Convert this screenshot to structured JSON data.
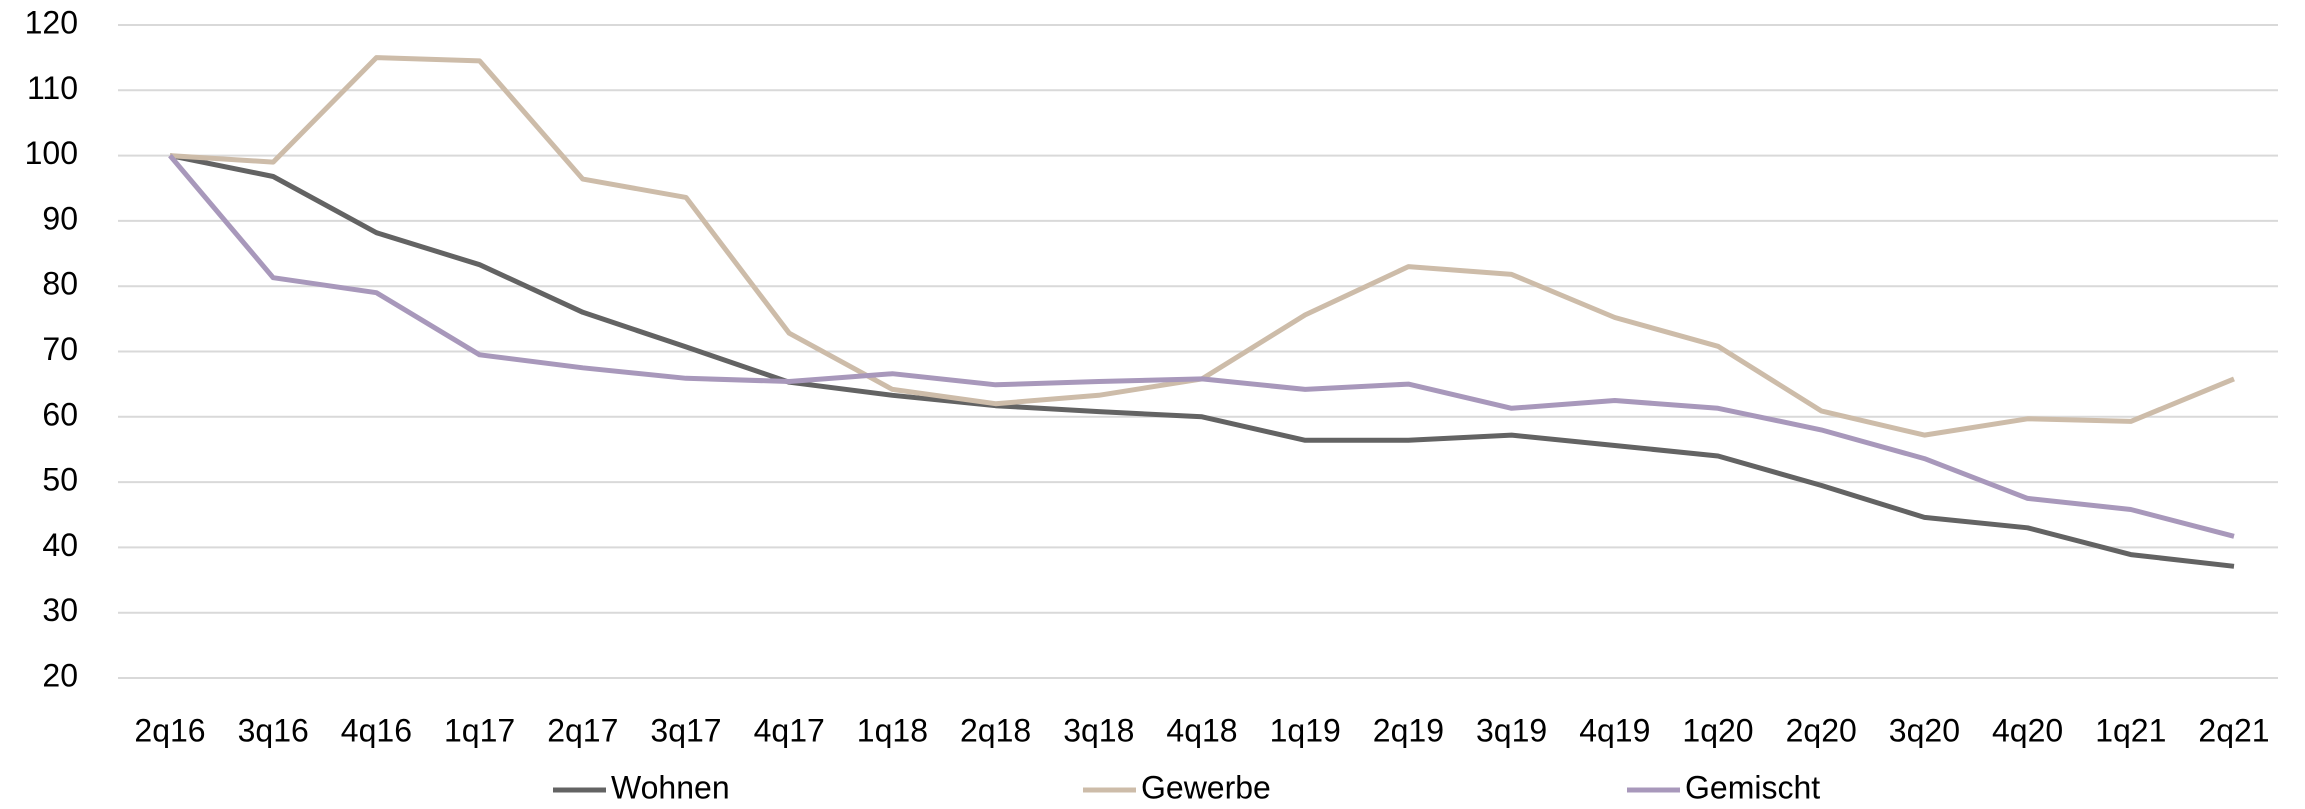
{
  "chart_data": {
    "type": "line",
    "categories": [
      "2q16",
      "3q16",
      "4q16",
      "1q17",
      "2q17",
      "3q17",
      "4q17",
      "1q18",
      "2q18",
      "3q18",
      "4q18",
      "1q19",
      "2q19",
      "3q19",
      "4q19",
      "1q20",
      "2q20",
      "3q20",
      "4q20",
      "1q21",
      "2q21"
    ],
    "series": [
      {
        "name": "Wohnen",
        "color": "#636363",
        "values": [
          100,
          96.8,
          88.2,
          83.3,
          76,
          70.7,
          65.3,
          63.3,
          61.7,
          60.8,
          60,
          56.4,
          56.4,
          57.2,
          55.6,
          54,
          49.5,
          44.6,
          43,
          38.9,
          37.1
        ]
      },
      {
        "name": "Gewerbe",
        "color": "#cdbca9",
        "values": [
          100,
          99,
          115,
          114.5,
          96.4,
          93.6,
          72.8,
          64.2,
          62,
          63.3,
          65.8,
          75.6,
          83,
          81.8,
          75.2,
          70.8,
          60.9,
          57.2,
          59.7,
          59.3,
          65.8
        ]
      },
      {
        "name": "Gemischt",
        "color": "#a898bb",
        "values": [
          100,
          81.3,
          79,
          69.5,
          67.5,
          65.9,
          65.4,
          66.6,
          64.9,
          65.4,
          65.8,
          64.2,
          65,
          61.3,
          62.5,
          61.3,
          58,
          53.6,
          47.5,
          45.8,
          41.7
        ]
      }
    ],
    "ylim": [
      20,
      120
    ],
    "yticks": [
      20,
      30,
      40,
      50,
      60,
      70,
      80,
      90,
      100,
      110,
      120
    ],
    "grid": true,
    "legend": "bottom"
  }
}
